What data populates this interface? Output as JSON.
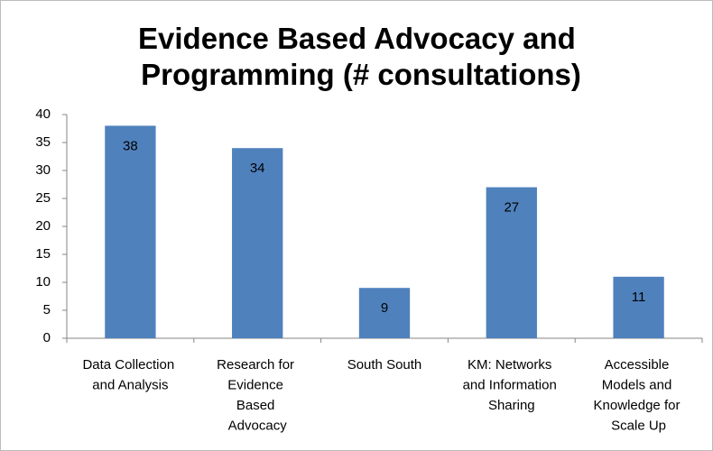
{
  "chart_data": {
    "type": "bar",
    "title": "Evidence Based Advocacy and Programming (# consultations)",
    "categories": [
      "Data Collection and Analysis",
      "Research for Evidence Based Advocacy",
      "South South",
      "KM: Networks and Information Sharing",
      "Accessible Models and Knowledge for Scale Up"
    ],
    "values": [
      38,
      34,
      9,
      27,
      11
    ],
    "color": "#4f81bd",
    "ylim": [
      0,
      40
    ],
    "yticks": [
      0,
      5,
      10,
      15,
      20,
      25,
      30,
      35,
      40
    ],
    "grid": false
  }
}
